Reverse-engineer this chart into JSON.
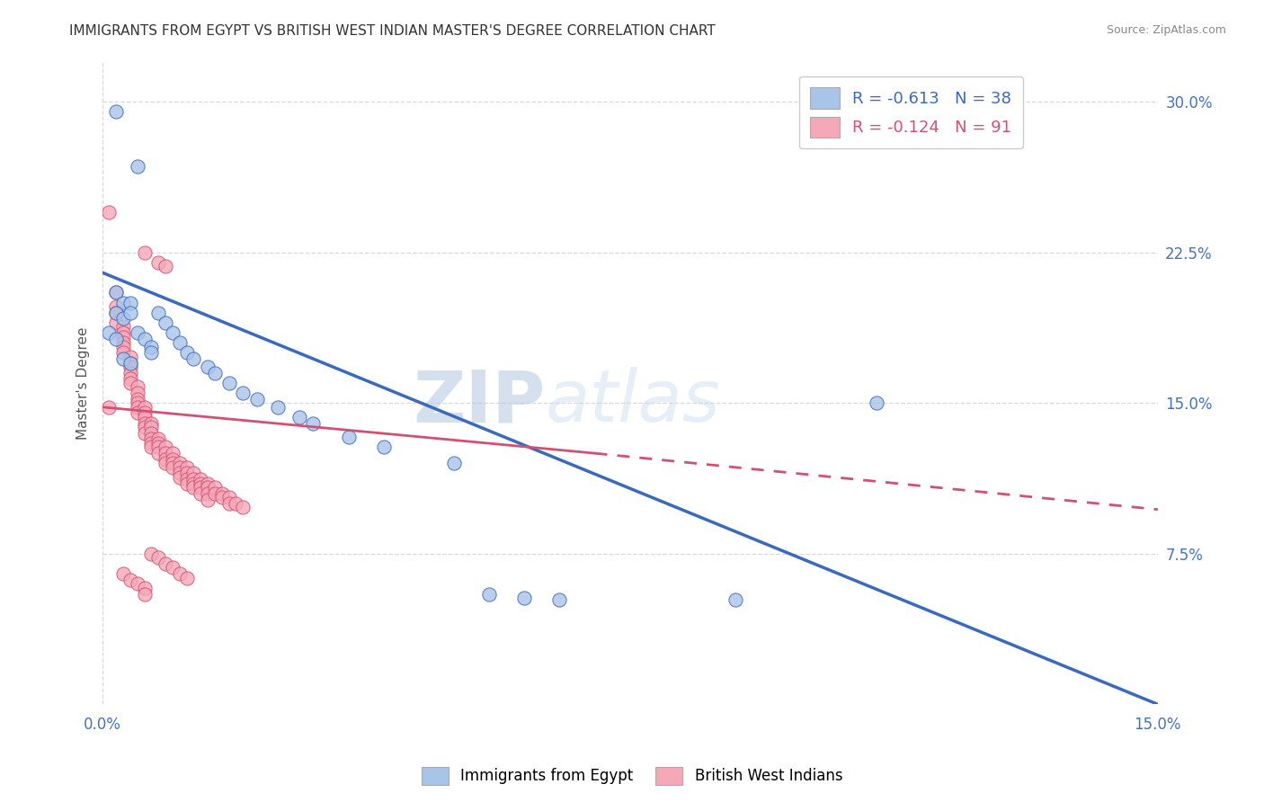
{
  "title": "IMMIGRANTS FROM EGYPT VS BRITISH WEST INDIAN MASTER'S DEGREE CORRELATION CHART",
  "source": "Source: ZipAtlas.com",
  "ylabel": "Master's Degree",
  "yticks": [
    "7.5%",
    "15.0%",
    "22.5%",
    "30.0%"
  ],
  "ytick_vals": [
    0.075,
    0.15,
    0.225,
    0.3
  ],
  "xlim": [
    0.0,
    0.15
  ],
  "ylim": [
    0.0,
    0.32
  ],
  "legend_label1": "Immigrants from Egypt",
  "legend_label2": "British West Indians",
  "egypt_color": "#a8c4e8",
  "bwi_color": "#f4a8b8",
  "egypt_line_color": "#3a6abf",
  "bwi_line_color": "#d45070",
  "egypt_scatter": [
    [
      0.002,
      0.295
    ],
    [
      0.005,
      0.268
    ],
    [
      0.002,
      0.205
    ],
    [
      0.003,
      0.2
    ],
    [
      0.002,
      0.195
    ],
    [
      0.003,
      0.192
    ],
    [
      0.004,
      0.2
    ],
    [
      0.004,
      0.195
    ],
    [
      0.001,
      0.185
    ],
    [
      0.002,
      0.182
    ],
    [
      0.005,
      0.185
    ],
    [
      0.006,
      0.182
    ],
    [
      0.007,
      0.178
    ],
    [
      0.007,
      0.175
    ],
    [
      0.003,
      0.172
    ],
    [
      0.004,
      0.17
    ],
    [
      0.008,
      0.195
    ],
    [
      0.009,
      0.19
    ],
    [
      0.01,
      0.185
    ],
    [
      0.011,
      0.18
    ],
    [
      0.012,
      0.175
    ],
    [
      0.013,
      0.172
    ],
    [
      0.015,
      0.168
    ],
    [
      0.016,
      0.165
    ],
    [
      0.018,
      0.16
    ],
    [
      0.02,
      0.155
    ],
    [
      0.022,
      0.152
    ],
    [
      0.025,
      0.148
    ],
    [
      0.028,
      0.143
    ],
    [
      0.03,
      0.14
    ],
    [
      0.035,
      0.133
    ],
    [
      0.04,
      0.128
    ],
    [
      0.05,
      0.12
    ],
    [
      0.055,
      0.055
    ],
    [
      0.06,
      0.053
    ],
    [
      0.065,
      0.052
    ],
    [
      0.09,
      0.052
    ],
    [
      0.11,
      0.15
    ]
  ],
  "bwi_scatter": [
    [
      0.001,
      0.245
    ],
    [
      0.002,
      0.205
    ],
    [
      0.002,
      0.198
    ],
    [
      0.002,
      0.195
    ],
    [
      0.002,
      0.19
    ],
    [
      0.003,
      0.188
    ],
    [
      0.003,
      0.185
    ],
    [
      0.003,
      0.183
    ],
    [
      0.003,
      0.18
    ],
    [
      0.003,
      0.178
    ],
    [
      0.003,
      0.175
    ],
    [
      0.004,
      0.173
    ],
    [
      0.004,
      0.17
    ],
    [
      0.004,
      0.168
    ],
    [
      0.004,
      0.165
    ],
    [
      0.004,
      0.162
    ],
    [
      0.004,
      0.16
    ],
    [
      0.005,
      0.158
    ],
    [
      0.005,
      0.155
    ],
    [
      0.005,
      0.152
    ],
    [
      0.005,
      0.15
    ],
    [
      0.005,
      0.148
    ],
    [
      0.005,
      0.145
    ],
    [
      0.006,
      0.148
    ],
    [
      0.006,
      0.145
    ],
    [
      0.006,
      0.143
    ],
    [
      0.006,
      0.14
    ],
    [
      0.006,
      0.138
    ],
    [
      0.006,
      0.135
    ],
    [
      0.007,
      0.14
    ],
    [
      0.007,
      0.138
    ],
    [
      0.007,
      0.135
    ],
    [
      0.007,
      0.132
    ],
    [
      0.007,
      0.13
    ],
    [
      0.007,
      0.128
    ],
    [
      0.008,
      0.132
    ],
    [
      0.008,
      0.13
    ],
    [
      0.008,
      0.128
    ],
    [
      0.008,
      0.125
    ],
    [
      0.009,
      0.128
    ],
    [
      0.009,
      0.125
    ],
    [
      0.009,
      0.122
    ],
    [
      0.009,
      0.12
    ],
    [
      0.01,
      0.125
    ],
    [
      0.01,
      0.122
    ],
    [
      0.01,
      0.12
    ],
    [
      0.01,
      0.118
    ],
    [
      0.011,
      0.12
    ],
    [
      0.011,
      0.118
    ],
    [
      0.011,
      0.115
    ],
    [
      0.011,
      0.113
    ],
    [
      0.012,
      0.118
    ],
    [
      0.012,
      0.115
    ],
    [
      0.012,
      0.112
    ],
    [
      0.012,
      0.11
    ],
    [
      0.013,
      0.115
    ],
    [
      0.013,
      0.112
    ],
    [
      0.013,
      0.11
    ],
    [
      0.013,
      0.108
    ],
    [
      0.014,
      0.112
    ],
    [
      0.014,
      0.11
    ],
    [
      0.014,
      0.108
    ],
    [
      0.014,
      0.105
    ],
    [
      0.015,
      0.11
    ],
    [
      0.015,
      0.108
    ],
    [
      0.015,
      0.105
    ],
    [
      0.015,
      0.102
    ],
    [
      0.016,
      0.108
    ],
    [
      0.016,
      0.105
    ],
    [
      0.017,
      0.105
    ],
    [
      0.017,
      0.103
    ],
    [
      0.018,
      0.103
    ],
    [
      0.018,
      0.1
    ],
    [
      0.019,
      0.1
    ],
    [
      0.02,
      0.098
    ],
    [
      0.006,
      0.225
    ],
    [
      0.008,
      0.22
    ],
    [
      0.009,
      0.218
    ],
    [
      0.001,
      0.148
    ],
    [
      0.003,
      0.065
    ],
    [
      0.004,
      0.062
    ],
    [
      0.005,
      0.06
    ],
    [
      0.006,
      0.058
    ],
    [
      0.007,
      0.075
    ],
    [
      0.008,
      0.073
    ],
    [
      0.009,
      0.07
    ],
    [
      0.01,
      0.068
    ],
    [
      0.011,
      0.065
    ],
    [
      0.012,
      0.063
    ],
    [
      0.006,
      0.055
    ]
  ],
  "egypt_line": [
    0.0,
    0.215,
    0.15,
    0.0
  ],
  "bwi_line_solid": [
    0.0,
    0.148,
    0.07,
    0.125
  ],
  "bwi_line_dash": [
    0.07,
    0.125,
    0.15,
    0.097
  ],
  "watermark_zip": "ZIP",
  "watermark_atlas": "atlas",
  "background_color": "#ffffff",
  "grid_color": "#d8d8d8"
}
